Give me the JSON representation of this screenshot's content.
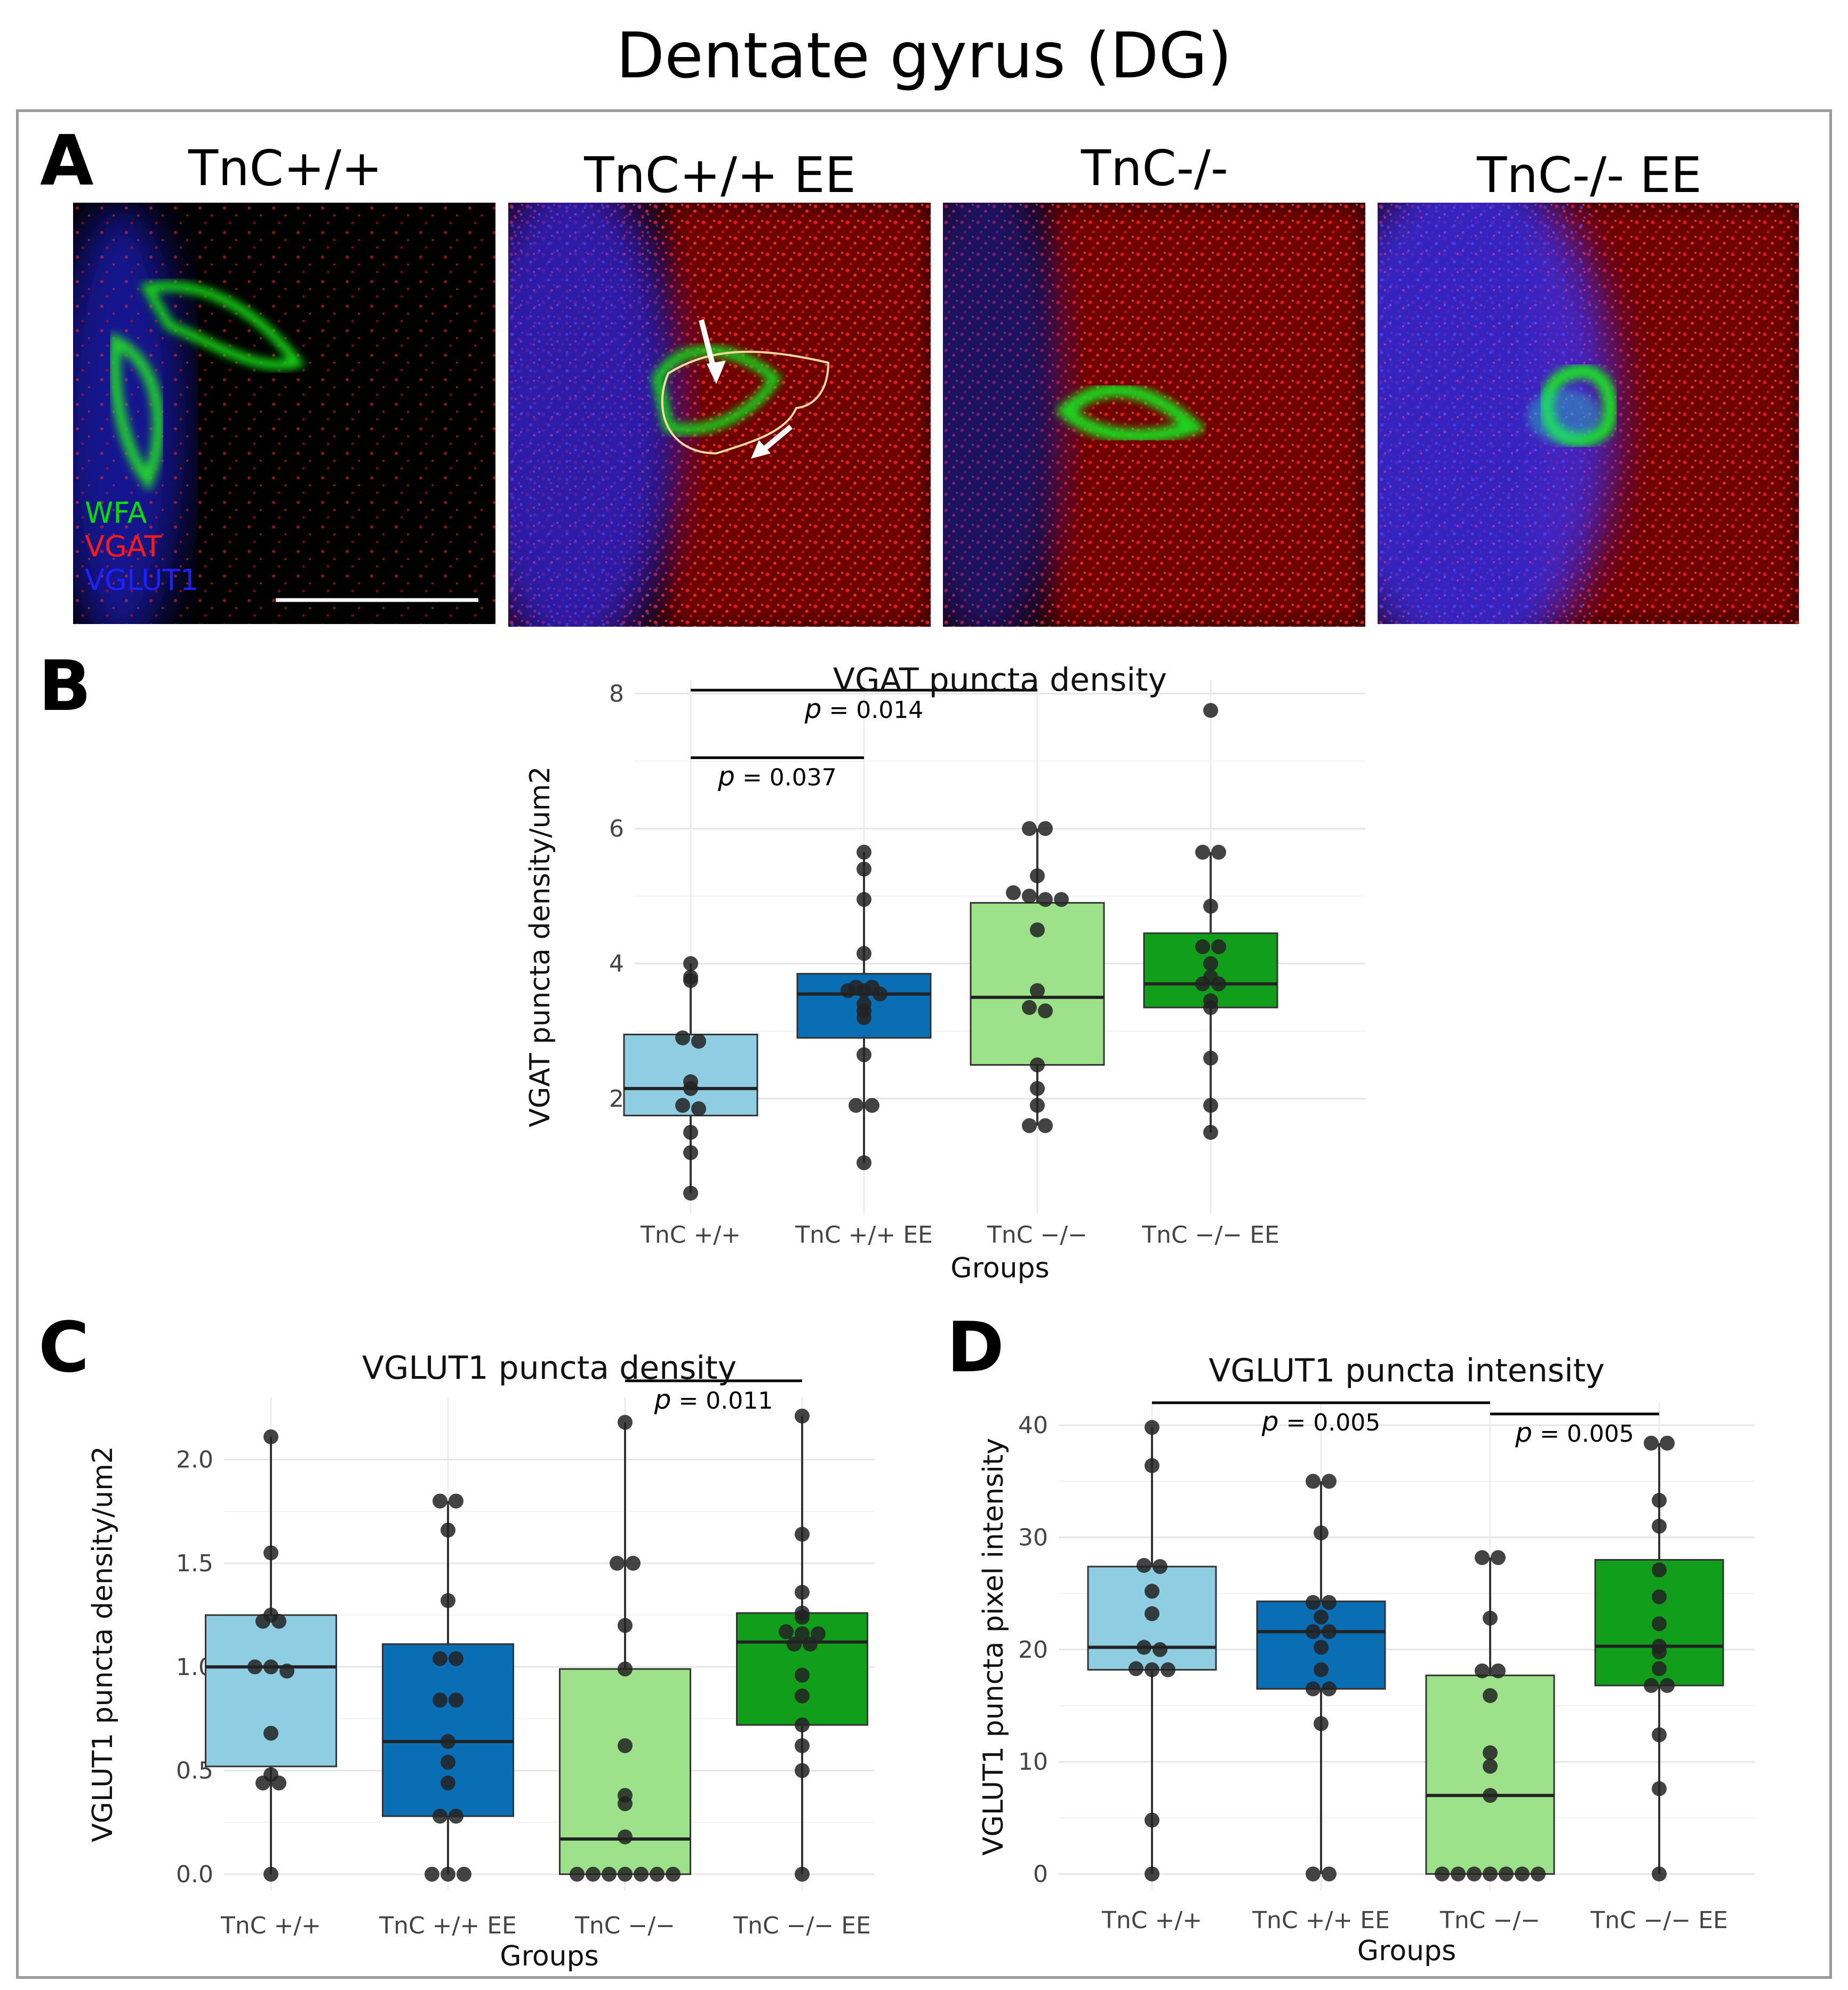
{
  "figure_title": "Dentate gyrus (DG)",
  "panel_a": {
    "letter": "A",
    "images": [
      {
        "title": "TnC+/+"
      },
      {
        "title": "TnC+/+ EE"
      },
      {
        "title": "TnC-/-"
      },
      {
        "title": "TnC-/- EE"
      }
    ],
    "channel_legend": [
      {
        "label": "WFA",
        "color": "#00e000"
      },
      {
        "label": "VGAT",
        "color": "#ff1a1a"
      },
      {
        "label": "VGLUT1",
        "color": "#2020ff"
      }
    ]
  },
  "panel_letters": {
    "b": "B",
    "c": "C",
    "d": "D"
  },
  "colors": {
    "light_blue": "#8fcde3",
    "dark_blue": "#0a6eb4",
    "light_green": "#9de28a",
    "dark_green": "#119f1b",
    "grid": "#ebebeb",
    "point": "#2a2a2a"
  },
  "chart_data": [
    {
      "id": "B",
      "type": "box",
      "title": "VGAT puncta density",
      "xlabel": "Groups",
      "ylabel": "VGAT puncta density/um2",
      "categories": [
        "TnC +/+",
        "TnC +/+ EE",
        "TnC −/−",
        "TnC −/− EE"
      ],
      "ylim": [
        0.3,
        8.2
      ],
      "yticks": [
        2,
        4,
        6,
        8
      ],
      "grid": true,
      "boxes": [
        {
          "q1": 1.75,
          "median": 2.15,
          "q3": 2.95,
          "whisker_low": 0.6,
          "whisker_high": 4.0,
          "color": "light_blue"
        },
        {
          "q1": 2.9,
          "median": 3.55,
          "q3": 3.85,
          "whisker_low": 1.05,
          "whisker_high": 5.65,
          "color": "dark_blue"
        },
        {
          "q1": 2.5,
          "median": 3.5,
          "q3": 4.9,
          "whisker_low": 1.6,
          "whisker_high": 6.0,
          "color": "light_green"
        },
        {
          "q1": 3.35,
          "median": 3.7,
          "q3": 4.45,
          "whisker_low": 1.5,
          "whisker_high": 5.65,
          "color": "dark_green"
        }
      ],
      "points": [
        [
          4.0,
          3.8,
          3.75,
          2.9,
          2.85,
          2.25,
          2.15,
          1.9,
          1.85,
          1.5,
          1.2,
          0.6
        ],
        [
          5.65,
          5.4,
          4.95,
          4.15,
          3.65,
          3.65,
          3.6,
          3.6,
          3.55,
          3.4,
          3.3,
          3.2,
          2.65,
          1.9,
          1.9,
          1.05
        ],
        [
          6.0,
          6.0,
          5.3,
          5.05,
          5.0,
          4.95,
          4.95,
          4.5,
          3.6,
          3.35,
          3.3,
          2.5,
          2.15,
          1.9,
          1.6,
          1.6
        ],
        [
          7.75,
          5.65,
          5.65,
          4.85,
          4.25,
          4.25,
          4.0,
          3.8,
          3.7,
          3.7,
          3.45,
          3.35,
          2.6,
          1.9,
          1.5
        ]
      ],
      "brackets": [
        {
          "from": 0,
          "to": 1,
          "y": 7.05,
          "label_p": "p",
          "label_value": " = 0.037"
        },
        {
          "from": 0,
          "to": 2,
          "y": 8.05,
          "label_p": "p",
          "label_value": " = 0.014"
        }
      ]
    },
    {
      "id": "C",
      "type": "box",
      "title": "VGLUT1 puncta density",
      "xlabel": "Groups",
      "ylabel": "VGLUT1 puncta density/um2",
      "categories": [
        "TnC +/+",
        "TnC +/+ EE",
        "TnC −/−",
        "TnC −/− EE"
      ],
      "ylim": [
        -0.08,
        2.3
      ],
      "yticks": [
        0.0,
        0.5,
        1.0,
        1.5,
        2.0
      ],
      "ytick_labels": [
        "0.0",
        "0.5",
        "1.0",
        "1.5",
        "2.0"
      ],
      "grid": true,
      "boxes": [
        {
          "q1": 0.52,
          "median": 1.0,
          "q3": 1.25,
          "whisker_low": 0.0,
          "whisker_high": 2.11,
          "color": "light_blue"
        },
        {
          "q1": 0.28,
          "median": 0.64,
          "q3": 1.11,
          "whisker_low": 0.0,
          "whisker_high": 1.8,
          "color": "dark_blue"
        },
        {
          "q1": 0.0,
          "median": 0.17,
          "q3": 0.99,
          "whisker_low": 0.0,
          "whisker_high": 2.18,
          "color": "light_green"
        },
        {
          "q1": 0.72,
          "median": 1.12,
          "q3": 1.26,
          "whisker_low": 0.0,
          "whisker_high": 2.21,
          "color": "dark_green"
        }
      ],
      "points": [
        [
          2.11,
          1.55,
          1.25,
          1.22,
          1.22,
          1.0,
          1.0,
          0.98,
          0.68,
          0.48,
          0.44,
          0.44,
          0.0
        ],
        [
          1.8,
          1.8,
          1.66,
          1.32,
          1.04,
          1.04,
          0.84,
          0.84,
          0.64,
          0.54,
          0.44,
          0.28,
          0.28,
          0.0,
          0.0,
          0.0
        ],
        [
          2.18,
          1.5,
          1.5,
          1.2,
          0.99,
          0.62,
          0.38,
          0.34,
          0.18,
          0.0,
          0.0,
          0.0,
          0.0,
          0.0,
          0.0,
          0.0
        ],
        [
          2.21,
          1.64,
          1.36,
          1.26,
          1.24,
          1.17,
          1.16,
          1.16,
          1.11,
          1.11,
          0.96,
          0.86,
          0.72,
          0.62,
          0.5,
          0.0
        ]
      ],
      "brackets": [
        {
          "from": 2,
          "to": 3,
          "y": 2.38,
          "label_p": "p",
          "label_value": " = 0.011"
        }
      ]
    },
    {
      "id": "D",
      "type": "box",
      "title": "VGLUT1 puncta intensity",
      "xlabel": "Groups",
      "ylabel": "VGLUT1 puncta pixel intensity",
      "categories": [
        "TnC +/+",
        "TnC +/+ EE",
        "TnC −/−",
        "TnC −/− EE"
      ],
      "ylim": [
        -1.5,
        42.0
      ],
      "yticks": [
        0,
        10,
        20,
        30,
        40
      ],
      "grid": true,
      "boxes": [
        {
          "q1": 18.2,
          "median": 20.2,
          "q3": 27.4,
          "whisker_low": 0.0,
          "whisker_high": 39.8,
          "color": "light_blue"
        },
        {
          "q1": 16.5,
          "median": 21.6,
          "q3": 24.3,
          "whisker_low": 0.0,
          "whisker_high": 35.0,
          "color": "dark_blue"
        },
        {
          "q1": 0.0,
          "median": 7.0,
          "q3": 17.7,
          "whisker_low": 0.0,
          "whisker_high": 28.2,
          "color": "light_green"
        },
        {
          "q1": 16.8,
          "median": 20.3,
          "q3": 28.0,
          "whisker_low": 0.0,
          "whisker_high": 38.4,
          "color": "dark_green"
        }
      ],
      "points": [
        [
          39.8,
          36.4,
          27.5,
          27.4,
          25.2,
          23.2,
          20.2,
          20.0,
          18.3,
          18.2,
          18.2,
          4.8,
          0.0
        ],
        [
          35.0,
          35.0,
          30.4,
          24.2,
          24.2,
          22.9,
          21.6,
          21.6,
          20.2,
          18.2,
          16.5,
          16.5,
          13.4,
          0.0,
          0.0
        ],
        [
          28.2,
          28.2,
          22.8,
          18.1,
          18.1,
          15.9,
          10.8,
          9.6,
          7.0,
          0.0,
          0.0,
          0.0,
          0.0,
          0.0,
          0.0,
          0.0
        ],
        [
          38.4,
          38.4,
          33.3,
          31.0,
          27.1,
          24.7,
          22.3,
          20.3,
          19.8,
          18.3,
          16.8,
          16.8,
          12.4,
          7.6,
          0.0
        ]
      ],
      "brackets": [
        {
          "from": 0,
          "to": 2,
          "y": 42.0,
          "label_p": "p",
          "label_value": " = 0.005"
        },
        {
          "from": 2,
          "to": 3,
          "y": 41.0,
          "label_p": "p",
          "label_value": " = 0.005"
        }
      ]
    }
  ]
}
